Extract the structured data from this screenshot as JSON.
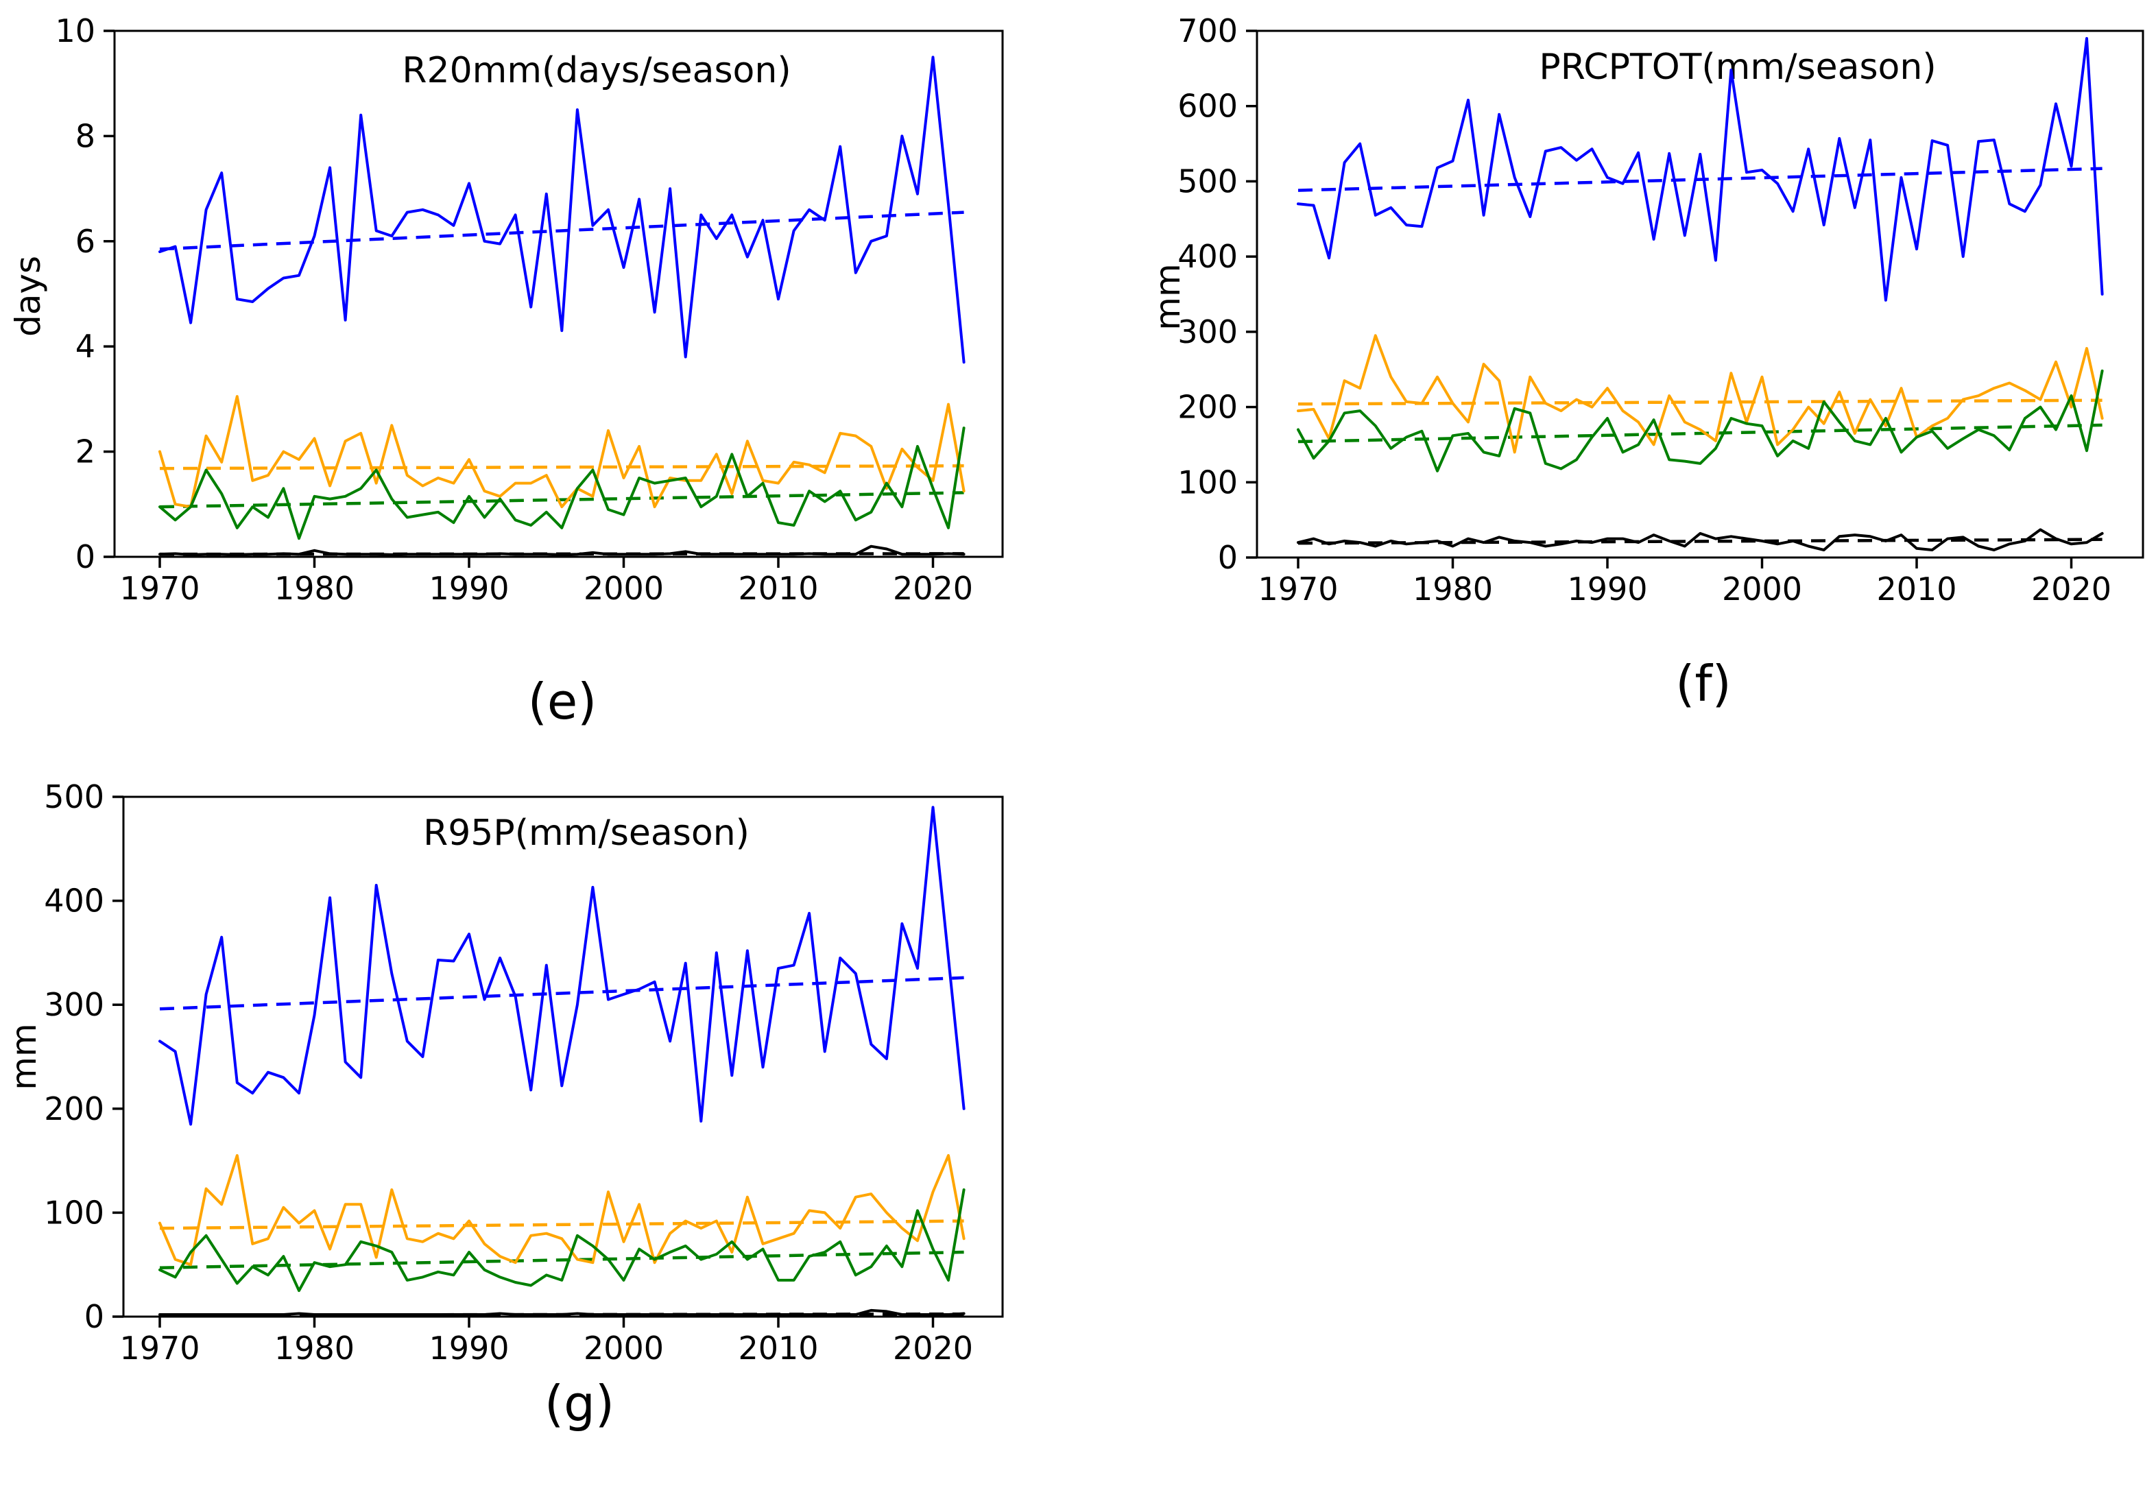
{
  "figure": {
    "background": "#ffffff",
    "panel_labels": [
      "(e)",
      "(f)",
      "(g)"
    ]
  },
  "years": [
    1970,
    1971,
    1972,
    1973,
    1974,
    1975,
    1976,
    1977,
    1978,
    1979,
    1980,
    1981,
    1982,
    1983,
    1984,
    1985,
    1986,
    1987,
    1988,
    1989,
    1990,
    1991,
    1992,
    1993,
    1994,
    1995,
    1996,
    1997,
    1998,
    1999,
    2000,
    2001,
    2002,
    2003,
    2004,
    2005,
    2006,
    2007,
    2008,
    2009,
    2010,
    2011,
    2012,
    2013,
    2014,
    2015,
    2016,
    2017,
    2018,
    2019,
    2020,
    2021,
    2022
  ],
  "chart_data": [
    {
      "id": "e",
      "type": "line",
      "title": "R20mm(days/season)",
      "ylabel": "days",
      "panel_label": "(e)",
      "ylim": [
        0,
        10
      ],
      "yticks": [
        0,
        2,
        4,
        6,
        8,
        10
      ],
      "xticks": [
        1970,
        1980,
        1990,
        2000,
        2010,
        2020
      ],
      "x_range_years": [
        1970,
        2022
      ],
      "grid": false,
      "legend": "none",
      "series": [
        {
          "name": "blue-solid",
          "color": "#0000ff",
          "style": "solid",
          "values": [
            5.8,
            5.9,
            4.45,
            6.6,
            7.3,
            4.9,
            4.85,
            5.1,
            5.3,
            5.35,
            6.1,
            7.4,
            4.5,
            8.4,
            6.2,
            6.1,
            6.55,
            6.6,
            6.5,
            6.3,
            7.1,
            6.0,
            5.95,
            6.5,
            4.75,
            6.9,
            4.3,
            8.5,
            6.3,
            6.6,
            5.5,
            6.8,
            4.65,
            7.0,
            3.8,
            6.5,
            6.05,
            6.5,
            5.7,
            6.4,
            4.9,
            6.2,
            6.6,
            6.4,
            7.8,
            5.4,
            6.0,
            6.1,
            8.0,
            6.9,
            9.5,
            6.7,
            3.7
          ]
        },
        {
          "name": "orange-solid",
          "color": "#ffa500",
          "style": "solid",
          "values": [
            2.0,
            1.0,
            0.95,
            2.3,
            1.8,
            3.05,
            1.45,
            1.55,
            2.0,
            1.85,
            2.25,
            1.35,
            2.2,
            2.35,
            1.4,
            2.5,
            1.55,
            1.35,
            1.5,
            1.4,
            1.85,
            1.25,
            1.15,
            1.4,
            1.4,
            1.55,
            0.95,
            1.3,
            1.15,
            2.4,
            1.5,
            2.1,
            0.95,
            1.5,
            1.45,
            1.45,
            1.95,
            1.2,
            2.2,
            1.45,
            1.4,
            1.8,
            1.75,
            1.6,
            2.35,
            2.3,
            2.1,
            1.3,
            2.05,
            1.7,
            1.45,
            2.9,
            1.25
          ]
        },
        {
          "name": "green-solid",
          "color": "#008000",
          "style": "solid",
          "values": [
            0.95,
            0.7,
            0.95,
            1.65,
            1.2,
            0.55,
            0.95,
            0.75,
            1.3,
            0.35,
            1.15,
            1.1,
            1.15,
            1.3,
            1.65,
            1.1,
            0.75,
            0.8,
            0.85,
            0.65,
            1.15,
            0.75,
            1.1,
            0.7,
            0.6,
            0.85,
            0.55,
            1.3,
            1.65,
            0.9,
            0.8,
            1.5,
            1.4,
            1.45,
            1.5,
            0.95,
            1.15,
            1.95,
            1.15,
            1.4,
            0.65,
            0.6,
            1.25,
            1.05,
            1.25,
            0.7,
            0.85,
            1.4,
            0.95,
            2.1,
            1.3,
            0.55,
            2.45
          ]
        },
        {
          "name": "black-solid",
          "color": "#000000",
          "style": "solid",
          "values": [
            0.05,
            0.06,
            0.04,
            0.05,
            0.05,
            0.04,
            0.05,
            0.05,
            0.06,
            0.05,
            0.12,
            0.06,
            0.05,
            0.05,
            0.05,
            0.04,
            0.05,
            0.05,
            0.05,
            0.05,
            0.05,
            0.05,
            0.06,
            0.05,
            0.05,
            0.05,
            0.04,
            0.05,
            0.08,
            0.05,
            0.05,
            0.05,
            0.05,
            0.06,
            0.1,
            0.05,
            0.05,
            0.05,
            0.05,
            0.05,
            0.05,
            0.05,
            0.06,
            0.05,
            0.05,
            0.05,
            0.2,
            0.15,
            0.05,
            0.05,
            0.05,
            0.06,
            0.05
          ]
        }
      ],
      "trendlines": [
        {
          "name": "blue-trend",
          "color": "#0000ff",
          "style": "dashed",
          "start": 5.85,
          "end": 6.55
        },
        {
          "name": "orange-trend",
          "color": "#ffa500",
          "style": "dashed",
          "start": 1.68,
          "end": 1.73
        },
        {
          "name": "green-trend",
          "color": "#008000",
          "style": "dashed",
          "start": 0.95,
          "end": 1.22
        },
        {
          "name": "black-trend",
          "color": "#000000",
          "style": "dashed",
          "start": 0.05,
          "end": 0.06
        }
      ]
    },
    {
      "id": "f",
      "type": "line",
      "title": "PRCPTOT(mm/season)",
      "ylabel": "mm",
      "panel_label": "(f)",
      "ylim": [
        0,
        700
      ],
      "yticks": [
        0,
        100,
        200,
        300,
        400,
        500,
        600,
        700
      ],
      "xticks": [
        1970,
        1980,
        1990,
        2000,
        2010,
        2020
      ],
      "x_range_years": [
        1970,
        2022
      ],
      "grid": false,
      "legend": "none",
      "series": [
        {
          "name": "blue-solid",
          "color": "#0000ff",
          "style": "solid",
          "values": [
            470,
            468,
            398,
            525,
            550,
            455,
            465,
            442,
            440,
            518,
            527,
            608,
            455,
            589,
            505,
            453,
            540,
            545,
            528,
            543,
            505,
            497,
            538,
            423,
            537,
            428,
            536,
            395,
            648,
            512,
            515,
            497,
            460,
            543,
            442,
            557,
            465,
            555,
            342,
            505,
            410,
            554,
            548,
            400,
            553,
            555,
            470,
            460,
            495,
            603,
            520,
            690,
            350
          ]
        },
        {
          "name": "orange-solid",
          "color": "#ffa500",
          "style": "solid",
          "values": [
            195,
            197,
            158,
            235,
            225,
            295,
            240,
            207,
            205,
            240,
            205,
            180,
            257,
            235,
            140,
            240,
            205,
            195,
            210,
            200,
            225,
            195,
            180,
            150,
            215,
            180,
            170,
            155,
            245,
            180,
            240,
            150,
            170,
            200,
            178,
            220,
            165,
            210,
            175,
            225,
            160,
            175,
            185,
            210,
            215,
            225,
            232,
            222,
            210,
            260,
            200,
            278,
            185
          ]
        },
        {
          "name": "green-solid",
          "color": "#008000",
          "style": "solid",
          "values": [
            170,
            132,
            155,
            192,
            195,
            175,
            145,
            160,
            168,
            115,
            162,
            165,
            140,
            135,
            198,
            192,
            125,
            118,
            130,
            160,
            185,
            140,
            150,
            183,
            130,
            128,
            125,
            145,
            185,
            178,
            175,
            135,
            155,
            145,
            207,
            180,
            155,
            150,
            185,
            140,
            160,
            168,
            145,
            158,
            170,
            162,
            143,
            185,
            200,
            170,
            215,
            142,
            248
          ]
        },
        {
          "name": "black-solid",
          "color": "#000000",
          "style": "solid",
          "values": [
            20,
            25,
            18,
            22,
            20,
            15,
            22,
            18,
            20,
            22,
            15,
            25,
            20,
            27,
            22,
            20,
            15,
            18,
            22,
            20,
            25,
            25,
            20,
            30,
            22,
            15,
            32,
            25,
            28,
            25,
            22,
            18,
            22,
            15,
            10,
            28,
            30,
            28,
            22,
            30,
            12,
            10,
            25,
            27,
            15,
            10,
            18,
            22,
            37,
            25,
            18,
            20,
            32
          ]
        }
      ],
      "trendlines": [
        {
          "name": "blue-trend",
          "color": "#0000ff",
          "style": "dashed",
          "start": 488,
          "end": 517
        },
        {
          "name": "orange-trend",
          "color": "#ffa500",
          "style": "dashed",
          "start": 204,
          "end": 209
        },
        {
          "name": "green-trend",
          "color": "#008000",
          "style": "dashed",
          "start": 154,
          "end": 176
        },
        {
          "name": "black-trend",
          "color": "#000000",
          "style": "dashed",
          "start": 19,
          "end": 24
        }
      ]
    },
    {
      "id": "g",
      "type": "line",
      "title": "R95P(mm/season)",
      "ylabel": "mm",
      "panel_label": "(g)",
      "ylim": [
        0,
        500
      ],
      "yticks": [
        0,
        100,
        200,
        300,
        400,
        500
      ],
      "xticks": [
        1970,
        1980,
        1990,
        2000,
        2010,
        2020
      ],
      "x_range_years": [
        1970,
        2022
      ],
      "grid": false,
      "legend": "none",
      "series": [
        {
          "name": "blue-solid",
          "color": "#0000ff",
          "style": "solid",
          "values": [
            265,
            255,
            185,
            310,
            365,
            225,
            215,
            235,
            230,
            215,
            290,
            403,
            245,
            230,
            415,
            330,
            265,
            250,
            343,
            342,
            368,
            305,
            345,
            308,
            218,
            338,
            222,
            300,
            413,
            305,
            310,
            315,
            322,
            265,
            340,
            188,
            350,
            232,
            352,
            240,
            335,
            338,
            388,
            255,
            345,
            330,
            262,
            248,
            378,
            335,
            490,
            345,
            200
          ]
        },
        {
          "name": "orange-solid",
          "color": "#ffa500",
          "style": "solid",
          "values": [
            90,
            55,
            50,
            123,
            108,
            155,
            70,
            75,
            105,
            90,
            102,
            65,
            108,
            108,
            57,
            122,
            75,
            72,
            80,
            75,
            92,
            70,
            58,
            52,
            78,
            80,
            75,
            55,
            52,
            120,
            72,
            108,
            52,
            80,
            92,
            85,
            92,
            62,
            115,
            70,
            75,
            80,
            102,
            100,
            85,
            115,
            118,
            100,
            85,
            73,
            120,
            155,
            75
          ]
        },
        {
          "name": "green-solid",
          "color": "#008000",
          "style": "solid",
          "values": [
            45,
            38,
            62,
            78,
            55,
            32,
            48,
            40,
            58,
            25,
            52,
            48,
            50,
            72,
            68,
            62,
            35,
            38,
            43,
            40,
            62,
            45,
            38,
            33,
            30,
            40,
            35,
            78,
            68,
            55,
            35,
            65,
            55,
            62,
            68,
            55,
            60,
            72,
            55,
            65,
            35,
            35,
            58,
            62,
            72,
            40,
            48,
            68,
            48,
            102,
            65,
            35,
            122
          ]
        },
        {
          "name": "black-solid",
          "color": "#000000",
          "style": "solid",
          "values": [
            2,
            2,
            2,
            2,
            2,
            2,
            2,
            2,
            2,
            3,
            2,
            2,
            2,
            2,
            2,
            2,
            2,
            2,
            2,
            2,
            2,
            2,
            3,
            2,
            2,
            2,
            2,
            3,
            2,
            2,
            2,
            2,
            2,
            2,
            2,
            2,
            2,
            2,
            2,
            2,
            2,
            2,
            2,
            2,
            2,
            2,
            6,
            5,
            2,
            2,
            2,
            2,
            3
          ]
        }
      ],
      "trendlines": [
        {
          "name": "blue-trend",
          "color": "#0000ff",
          "style": "dashed",
          "start": 296,
          "end": 326
        },
        {
          "name": "orange-trend",
          "color": "#ffa500",
          "style": "dashed",
          "start": 85,
          "end": 92
        },
        {
          "name": "green-trend",
          "color": "#008000",
          "style": "dashed",
          "start": 47,
          "end": 62
        },
        {
          "name": "black-trend",
          "color": "#000000",
          "style": "dashed",
          "start": 1.5,
          "end": 2.5
        }
      ]
    }
  ]
}
